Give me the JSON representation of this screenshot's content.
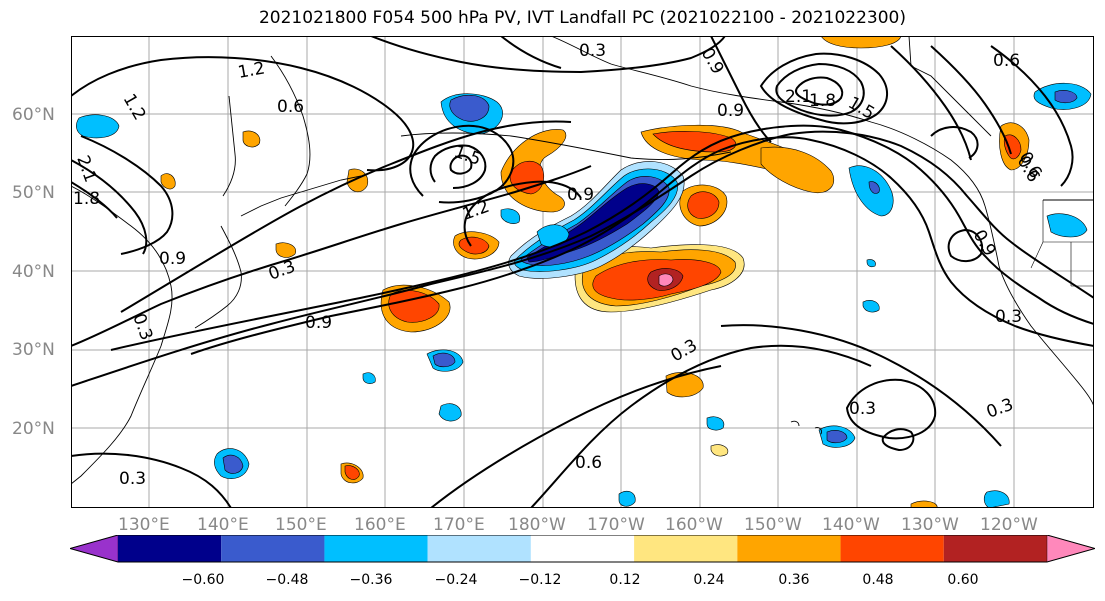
{
  "title": "2021021800 F054 500 hPa PV, IVT Landfall PC (2021022100 - 2021022300)",
  "lat_labels": [
    "60°N",
    "50°N",
    "40°N",
    "30°N",
    "20°N"
  ],
  "lon_labels": [
    "130°E",
    "140°E",
    "150°E",
    "160°E",
    "170°E",
    "180°W",
    "170°W",
    "160°W",
    "150°W",
    "140°W",
    "130°W",
    "120°W"
  ],
  "colorbar": {
    "ticks": [
      "−0.60",
      "−0.48",
      "−0.36",
      "−0.24",
      "−0.12",
      "0.12",
      "0.24",
      "0.36",
      "0.48",
      "0.60"
    ],
    "colors": [
      "#9932cc",
      "#00008b",
      "#3a5bcd",
      "#00bfff",
      "#b0e2ff",
      "#ffffff",
      "#ffe680",
      "#ffa500",
      "#ff4500",
      "#b22222",
      "#ff88bb"
    ]
  },
  "contour_labels": [
    "1.2",
    "1.2",
    "0.6",
    "0.3",
    "2.1",
    "1.8",
    "1.5",
    "0.9",
    "2.1",
    "1.8",
    "0.6",
    "1.5",
    "0.9",
    "0.6",
    "0.9",
    "1.2",
    "0.9",
    "0.3",
    "0.9",
    "0.3",
    "0.3",
    "0.6",
    "0.3",
    "0.3",
    "0.3",
    "0.9",
    "0.6",
    "0.3"
  ]
}
